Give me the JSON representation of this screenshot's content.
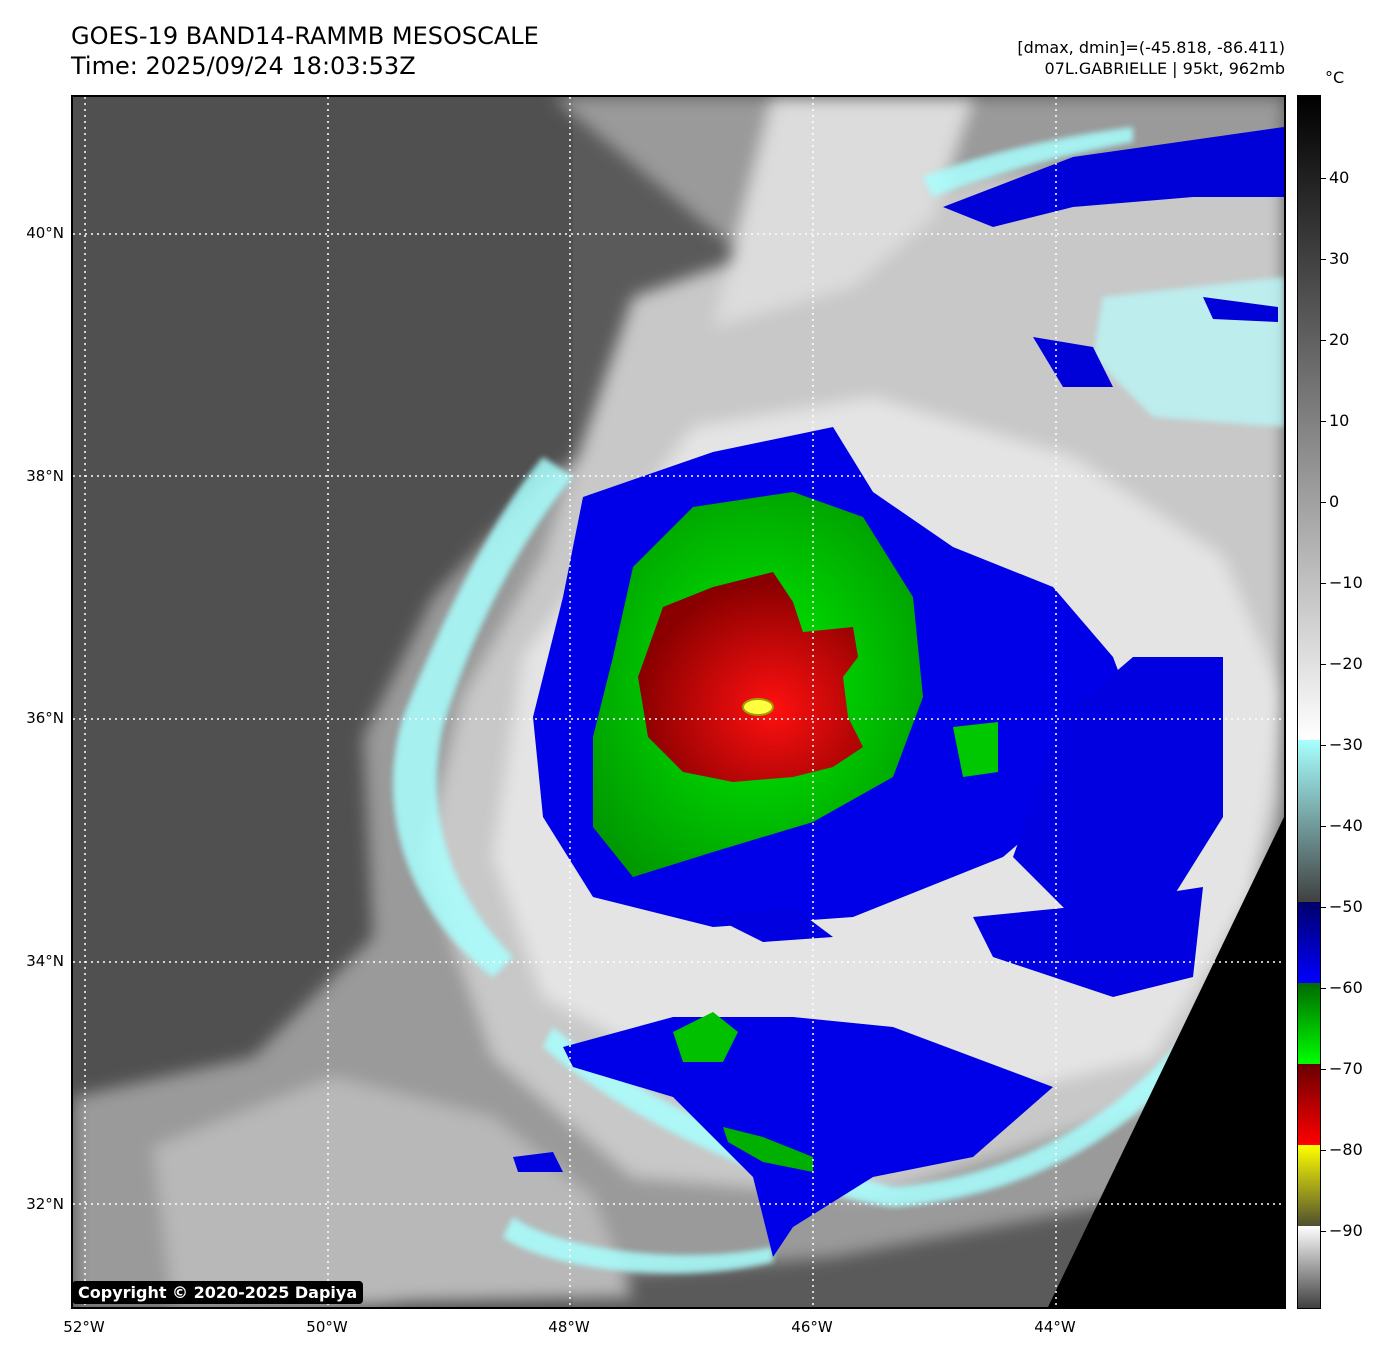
{
  "header": {
    "title_line1": "GOES-19 BAND14-RAMMB MESOSCALE",
    "title_line2": "Time: 2025/09/24 18:03:53Z",
    "info_line1": "[dmax, dmin]=(-45.818, -86.411)",
    "info_line2": "07L.GABRIELLE | 95kt, 962mb"
  },
  "map": {
    "lat_labels": [
      "40°N",
      "38°N",
      "36°N",
      "34°N",
      "32°N"
    ],
    "lon_labels": [
      "52°W",
      "50°W",
      "48°W",
      "46°W",
      "44°W"
    ],
    "copyright": "Copyright © 2020-2025 Dapiya"
  },
  "colorbar": {
    "unit": "°C",
    "ticks": [
      "40",
      "30",
      "20",
      "10",
      "0",
      "−10",
      "−20",
      "−30",
      "−40",
      "−50",
      "−60",
      "−70",
      "−80",
      "−90"
    ]
  },
  "colors": {
    "cold_cloud_blue": "#0000e8",
    "cold_cloud_green": "#00d200",
    "cold_cloud_red": "#b80000",
    "eye_yellow": "#ffff40",
    "cyan_edge": "#a8ffff",
    "background_gray": "#555555"
  }
}
